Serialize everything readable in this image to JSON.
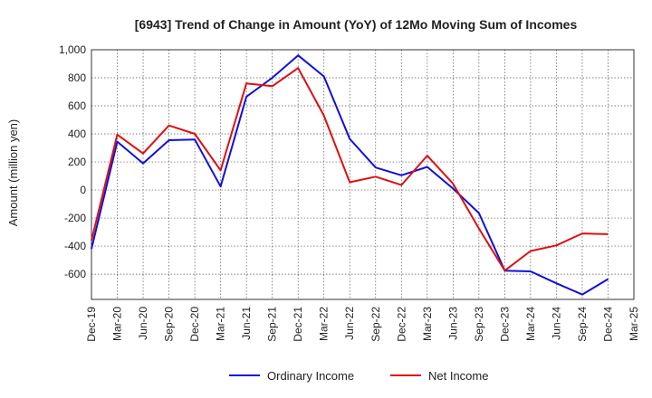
{
  "chart_data": {
    "type": "line",
    "title": "[6943]  Trend of Change in Amount (YoY) of 12Mo Moving Sum of Incomes",
    "xlabel": "",
    "ylabel": "Amount (million yen)",
    "ylim": [
      -780,
      1000
    ],
    "yticks": [
      1000,
      800,
      600,
      400,
      200,
      0,
      -200,
      -400,
      -600
    ],
    "ytick_labels": [
      "1,000",
      "800",
      "600",
      "400",
      "200",
      "0",
      "-200",
      "-400",
      "-600"
    ],
    "grid": true,
    "legend_position": "bottom-center",
    "categories": [
      "Dec-19",
      "Mar-20",
      "Jun-20",
      "Sep-20",
      "Dec-20",
      "Mar-21",
      "Jun-21",
      "Sep-21",
      "Dec-21",
      "Mar-22",
      "Jun-22",
      "Sep-22",
      "Dec-22",
      "Mar-23",
      "Jun-23",
      "Sep-23",
      "Dec-23",
      "Mar-24",
      "Jun-24",
      "Sep-24",
      "Dec-24",
      "Mar-25"
    ],
    "series": [
      {
        "name": "Ordinary Income",
        "color": "#1010dd",
        "values": [
          -420,
          345,
          190,
          355,
          360,
          25,
          665,
          800,
          960,
          810,
          365,
          160,
          105,
          165,
          10,
          -165,
          -575,
          -580,
          -665,
          -745,
          -635,
          null
        ]
      },
      {
        "name": "Net Income",
        "color": "#dd1010",
        "values": [
          -360,
          395,
          260,
          460,
          400,
          140,
          760,
          740,
          870,
          530,
          55,
          95,
          35,
          245,
          45,
          -275,
          -575,
          -435,
          -395,
          -310,
          -315,
          null
        ]
      }
    ]
  }
}
